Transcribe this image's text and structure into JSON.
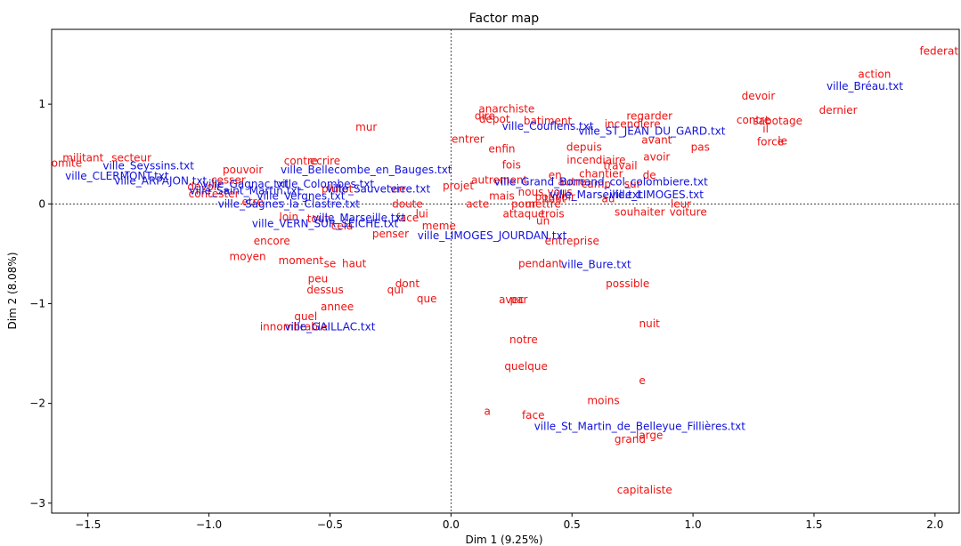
{
  "chart_data": {
    "type": "scatter",
    "title": "Factor map",
    "xlabel": "Dim 1 (9.25%)",
    "ylabel": "Dim 2 (8.08%)",
    "xlim": [
      -1.65,
      2.1
    ],
    "ylim": [
      -3.1,
      1.75
    ],
    "xticks": [
      -1.5,
      -1.0,
      -0.5,
      0.0,
      0.5,
      1.0,
      1.5,
      2.0
    ],
    "xtick_labels": [
      "−1.5",
      "−1.0",
      "−0.5",
      "0.0",
      "0.5",
      "1.0",
      "1.5",
      "2.0"
    ],
    "yticks": [
      -3,
      -2,
      -1,
      0,
      1
    ],
    "ytick_labels": [
      "−3",
      "−2",
      "−1",
      "0",
      "1"
    ],
    "grid": false,
    "reference_lines": {
      "x": 0,
      "y": 0
    },
    "colors": {
      "words": "#ee1111",
      "documents": "#1111dd"
    },
    "series": [
      {
        "points": [
          {
            "label": "federation",
            "x": 2.05,
            "y": 1.53
          },
          {
            "label": "action",
            "x": 1.75,
            "y": 1.3
          },
          {
            "label": "devoir",
            "x": 1.27,
            "y": 1.08
          },
          {
            "label": "dernier",
            "x": 1.6,
            "y": 0.94
          },
          {
            "label": "sabotage",
            "x": 1.35,
            "y": 0.83
          },
          {
            "label": "contre",
            "x": 1.25,
            "y": 0.84
          },
          {
            "label": "il",
            "x": 1.3,
            "y": 0.75
          },
          {
            "label": "le",
            "x": 1.37,
            "y": 0.63
          },
          {
            "label": "force",
            "x": 1.32,
            "y": 0.62
          },
          {
            "label": "regarder",
            "x": 0.82,
            "y": 0.88
          },
          {
            "label": "incendiere",
            "x": 0.75,
            "y": 0.8
          },
          {
            "label": "avant",
            "x": 0.85,
            "y": 0.64
          },
          {
            "label": "pas",
            "x": 1.03,
            "y": 0.57
          },
          {
            "label": "depuis",
            "x": 0.55,
            "y": 0.57
          },
          {
            "label": "incendiaire",
            "x": 0.6,
            "y": 0.44
          },
          {
            "label": "avoir",
            "x": 0.85,
            "y": 0.47
          },
          {
            "label": "travail",
            "x": 0.7,
            "y": 0.38
          },
          {
            "label": "chantier",
            "x": 0.62,
            "y": 0.3
          },
          {
            "label": "de",
            "x": 0.82,
            "y": 0.29
          },
          {
            "label": "camp",
            "x": 0.6,
            "y": 0.2
          },
          {
            "label": "sur",
            "x": 0.75,
            "y": 0.2
          },
          {
            "label": "autre",
            "x": 0.5,
            "y": 0.22
          },
          {
            "label": "en",
            "x": 0.43,
            "y": 0.29
          },
          {
            "label": "nous",
            "x": 0.33,
            "y": 0.12
          },
          {
            "label": "mais",
            "x": 0.21,
            "y": 0.08
          },
          {
            "label": "vous",
            "x": 0.45,
            "y": 0.12
          },
          {
            "label": "pouvoir",
            "x": 0.43,
            "y": 0.07
          },
          {
            "label": "tout",
            "x": 0.43,
            "y": 0.05
          },
          {
            "label": "au",
            "x": 0.65,
            "y": 0.05
          },
          {
            "label": "leur",
            "x": 0.95,
            "y": 0.0
          },
          {
            "label": "voiture",
            "x": 0.98,
            "y": -0.08
          },
          {
            "label": "pour",
            "x": 0.3,
            "y": 0.0
          },
          {
            "label": "mettre",
            "x": 0.38,
            "y": 0.0
          },
          {
            "label": "acte",
            "x": 0.11,
            "y": 0.0
          },
          {
            "label": "attaque",
            "x": 0.3,
            "y": -0.1
          },
          {
            "label": "trois",
            "x": 0.42,
            "y": -0.1
          },
          {
            "label": "un",
            "x": 0.38,
            "y": -0.17
          },
          {
            "label": "souhaiter",
            "x": 0.78,
            "y": -0.08
          },
          {
            "label": "entreprise",
            "x": 0.5,
            "y": -0.37
          },
          {
            "label": "entrer",
            "x": 0.07,
            "y": 0.65
          },
          {
            "label": "enfin",
            "x": 0.21,
            "y": 0.55
          },
          {
            "label": "fois",
            "x": 0.25,
            "y": 0.39
          },
          {
            "label": "autrement",
            "x": 0.2,
            "y": 0.24
          },
          {
            "label": "batiment",
            "x": 0.4,
            "y": 0.83
          },
          {
            "label": "anarchiste",
            "x": 0.23,
            "y": 0.95
          },
          {
            "label": "dire",
            "x": 0.14,
            "y": 0.88
          },
          {
            "label": "depot",
            "x": 0.18,
            "y": 0.85
          },
          {
            "label": "projet",
            "x": 0.03,
            "y": 0.18
          },
          {
            "label": "mur",
            "x": -0.35,
            "y": 0.77
          },
          {
            "label": "contre",
            "x": -0.62,
            "y": 0.43
          },
          {
            "label": "ecrire",
            "x": -0.52,
            "y": 0.43
          },
          {
            "label": "comite",
            "x": -1.6,
            "y": 0.41
          },
          {
            "label": "militant",
            "x": -1.52,
            "y": 0.46
          },
          {
            "label": "secteur",
            "x": -1.32,
            "y": 0.46
          },
          {
            "label": "devoir",
            "x": -1.02,
            "y": 0.17
          },
          {
            "label": "contester",
            "x": -0.98,
            "y": 0.1
          },
          {
            "label": "cesser",
            "x": -0.92,
            "y": 0.24
          },
          {
            "label": "pouvoir",
            "x": -0.86,
            "y": 0.34
          },
          {
            "label": "etre",
            "x": -0.82,
            "y": 0.02
          },
          {
            "label": "plutot",
            "x": -0.47,
            "y": 0.15
          },
          {
            "label": "vie",
            "x": -0.22,
            "y": 0.15
          },
          {
            "label": "doute",
            "x": -0.18,
            "y": 0.0
          },
          {
            "label": "loin",
            "x": -0.67,
            "y": -0.13
          },
          {
            "label": "tout",
            "x": -0.55,
            "y": -0.15
          },
          {
            "label": "cela",
            "x": -0.45,
            "y": -0.22
          },
          {
            "label": "lui",
            "x": -0.12,
            "y": -0.1
          },
          {
            "label": "face",
            "x": -0.18,
            "y": -0.14
          },
          {
            "label": "meme",
            "x": -0.05,
            "y": -0.22
          },
          {
            "label": "penser",
            "x": -0.25,
            "y": -0.3
          },
          {
            "label": "encore",
            "x": -0.74,
            "y": -0.37
          },
          {
            "label": "moyen",
            "x": -0.84,
            "y": -0.53
          },
          {
            "label": "moment",
            "x": -0.62,
            "y": -0.57
          },
          {
            "label": "se",
            "x": -0.5,
            "y": -0.6
          },
          {
            "label": "haut",
            "x": -0.4,
            "y": -0.6
          },
          {
            "label": "peu",
            "x": -0.55,
            "y": -0.75
          },
          {
            "label": "dessus",
            "x": -0.52,
            "y": -0.86
          },
          {
            "label": "dont",
            "x": -0.18,
            "y": -0.8
          },
          {
            "label": "qui",
            "x": -0.23,
            "y": -0.86
          },
          {
            "label": "que",
            "x": -0.1,
            "y": -0.95
          },
          {
            "label": "annee",
            "x": -0.47,
            "y": -1.03
          },
          {
            "label": "quel",
            "x": -0.6,
            "y": -1.13
          },
          {
            "label": "innombrable",
            "x": -0.65,
            "y": -1.23
          },
          {
            "label": "pendant",
            "x": 0.37,
            "y": -0.6
          },
          {
            "label": "possible",
            "x": 0.73,
            "y": -0.8
          },
          {
            "label": "avec",
            "x": 0.25,
            "y": -0.96
          },
          {
            "label": "par",
            "x": 0.28,
            "y": -0.96
          },
          {
            "label": "nuit",
            "x": 0.82,
            "y": -1.2
          },
          {
            "label": "notre",
            "x": 0.3,
            "y": -1.36
          },
          {
            "label": "quelque",
            "x": 0.31,
            "y": -1.63
          },
          {
            "label": "e",
            "x": 0.79,
            "y": -1.77
          },
          {
            "label": "moins",
            "x": 0.63,
            "y": -1.97
          },
          {
            "label": "a",
            "x": 0.15,
            "y": -2.08
          },
          {
            "label": "face",
            "x": 0.34,
            "y": -2.12
          },
          {
            "label": "large",
            "x": 0.82,
            "y": -2.32
          },
          {
            "label": "grand",
            "x": 0.74,
            "y": -2.36
          },
          {
            "label": "capitaliste",
            "x": 0.8,
            "y": -2.87
          }
        ]
      },
      {
        "points": [
          {
            "label": "ville_Bréau.txt",
            "x": 1.71,
            "y": 1.18
          },
          {
            "label": "ville_Couflens.txt",
            "x": 0.4,
            "y": 0.78
          },
          {
            "label": "ville_ST_JEAN_DU_GARD.txt",
            "x": 0.83,
            "y": 0.73
          },
          {
            "label": "ville_Bellecombe_en_Bauges.txt",
            "x": -0.35,
            "y": 0.34
          },
          {
            "label": "ville_Grand_Bornand_col_colombiere.txt",
            "x": 0.62,
            "y": 0.22
          },
          {
            "label": "ville_Marseille.txt",
            "x": 0.6,
            "y": 0.09
          },
          {
            "label": "ville_LIMOGES.txt",
            "x": 0.85,
            "y": 0.09
          },
          {
            "label": "ville_Sauveterre.txt",
            "x": -0.3,
            "y": 0.15
          },
          {
            "label": "ville_Colombes.txt",
            "x": -0.52,
            "y": 0.2
          },
          {
            "label": "ville_CLERMONT.txt",
            "x": -1.38,
            "y": 0.28
          },
          {
            "label": "ville_ARPAJON.txt",
            "x": -1.2,
            "y": 0.23
          },
          {
            "label": "ville_Seyssins.txt",
            "x": -1.25,
            "y": 0.38
          },
          {
            "label": "ville_Gagnac.txt",
            "x": -0.85,
            "y": 0.2
          },
          {
            "label": "ville_Saint_Martin.txt",
            "x": -0.85,
            "y": 0.13
          },
          {
            "label": "ville_Vergnes.txt",
            "x": -0.62,
            "y": 0.08
          },
          {
            "label": "ville_Sagnes_la_Clastre.txt",
            "x": -0.67,
            "y": 0.0
          },
          {
            "label": "ville_Marseille.txt",
            "x": -0.38,
            "y": -0.14
          },
          {
            "label": "ville_VERN_SUR_SEICHE.txt",
            "x": -0.52,
            "y": -0.2
          },
          {
            "label": "ville_LIMOGES_JOURDAN.txt",
            "x": 0.17,
            "y": -0.32
          },
          {
            "label": "ville_Bure.txt",
            "x": 0.6,
            "y": -0.61
          },
          {
            "label": "ville_GAILLAC.txt",
            "x": -0.5,
            "y": -1.23
          },
          {
            "label": "ville_St_Martin_de_Belleyue_Fillières.txt",
            "x": 0.78,
            "y": -2.23
          }
        ]
      }
    ]
  }
}
